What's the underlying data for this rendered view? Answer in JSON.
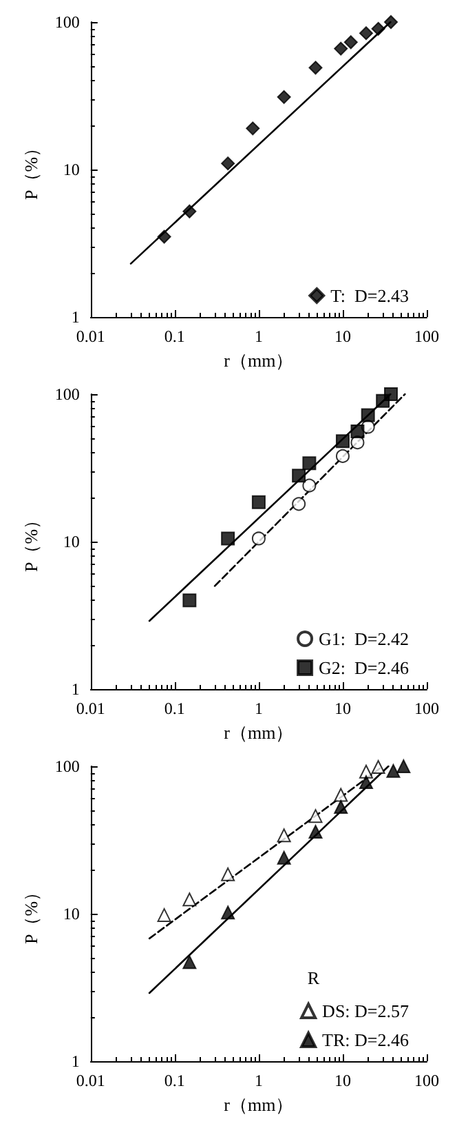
{
  "chart_data": [
    {
      "type": "scatter",
      "xlabel": "r（mm）",
      "ylabel": "P（%）",
      "log": "xy",
      "xlim": [
        0.01,
        100
      ],
      "ylim": [
        1,
        100
      ],
      "xticks": [
        0.01,
        0.1,
        1,
        10,
        100
      ],
      "yticks": [
        1,
        10,
        100
      ],
      "grid": false,
      "legend": "bottom right",
      "series": [
        {
          "name": "T:  D=2.43",
          "color": "#000000",
          "marker": "diamond",
          "x": [
            0.075,
            0.15,
            0.43,
            0.85,
            2,
            4.75,
            9.5,
            12.5,
            19,
            26.5,
            37.5
          ],
          "values": [
            3.5,
            5.2,
            11,
            19,
            31,
            49,
            66,
            73,
            84,
            90,
            100
          ]
        },
        {
          "type": "line",
          "color": "#000000",
          "line_style": "solid",
          "x": [
            0.03,
            37
          ],
          "values": [
            2.3,
            100
          ]
        }
      ]
    },
    {
      "type": "scatter",
      "xlabel": "r（mm）",
      "ylabel": "P（%）",
      "log": "xy",
      "xlim": [
        0.01,
        100
      ],
      "ylim": [
        1,
        100
      ],
      "xticks": [
        0.01,
        0.1,
        1,
        10,
        100
      ],
      "yticks": [
        1,
        10,
        100
      ],
      "grid": false,
      "legend": "bottom right",
      "series": [
        {
          "name": "G1:  D=2.42",
          "color": "#ffffff",
          "marker": "circle",
          "x": [
            1,
            3,
            4,
            10,
            15,
            20
          ],
          "values": [
            10.5,
            18,
            24,
            38,
            47,
            60
          ]
        },
        {
          "name": "G2:  D=2.46",
          "color": "#000000",
          "marker": "square",
          "x": [
            0.15,
            0.43,
            1,
            3,
            4,
            10,
            15,
            20,
            30,
            37.5
          ],
          "values": [
            4,
            10.5,
            18.5,
            28,
            34,
            48,
            56,
            72,
            90,
            100
          ]
        },
        {
          "type": "line",
          "color": "#000000",
          "line_style": "dashed",
          "x": [
            0.3,
            55
          ],
          "values": [
            5,
            100
          ]
        },
        {
          "type": "line",
          "color": "#000000",
          "line_style": "solid",
          "x": [
            0.05,
            37
          ],
          "values": [
            2.9,
            100
          ]
        }
      ]
    },
    {
      "type": "scatter",
      "xlabel": "r（mm）",
      "ylabel": "P（%）",
      "log": "xy",
      "xlim": [
        0.01,
        100
      ],
      "ylim": [
        1,
        100
      ],
      "xticks": [
        0.01,
        0.1,
        1,
        10,
        100
      ],
      "yticks": [
        1,
        10,
        100
      ],
      "grid": false,
      "legend": "bottom right",
      "legend_title": "R",
      "series": [
        {
          "name": "DS: D=2.57",
          "color": "#ffffff",
          "marker": "triangle",
          "x": [
            0.075,
            0.15,
            0.43,
            2,
            4.75,
            9.5,
            19,
            26.5
          ],
          "values": [
            9.8,
            12.5,
            18.5,
            34,
            46,
            64,
            92,
            99
          ]
        },
        {
          "name": "TR: D=2.46",
          "color": "#000000",
          "marker": "triangle",
          "x": [
            0.15,
            0.43,
            2,
            4.75,
            9.5,
            19,
            40,
            53
          ],
          "values": [
            4.7,
            10.2,
            24,
            36,
            53,
            78,
            93,
            100
          ]
        },
        {
          "type": "line",
          "color": "#000000",
          "line_style": "dashed",
          "x": [
            0.05,
            30
          ],
          "values": [
            6.8,
            100
          ]
        },
        {
          "type": "line",
          "color": "#000000",
          "line_style": "solid",
          "x": [
            0.05,
            35
          ],
          "values": [
            2.9,
            100
          ]
        }
      ]
    }
  ]
}
